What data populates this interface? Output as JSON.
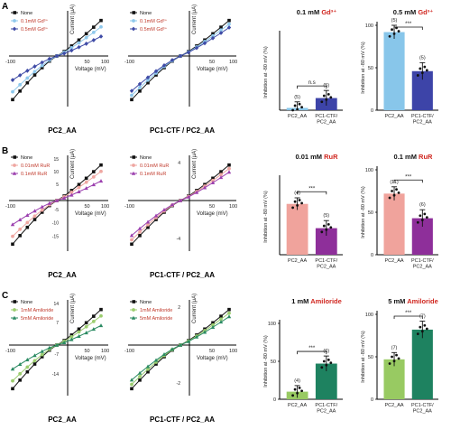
{
  "rows": [
    {
      "letter": "A",
      "iv": [
        {
          "title": "PC2_AA",
          "xlabel": "Voltage (mV)",
          "ylabel": "Current (μA)",
          "xticks": [
            "-100",
            "50",
            "100"
          ],
          "legend": [
            "None",
            "0.1mM Gd³⁺",
            "0.5mM Gd³⁺"
          ]
        },
        {
          "title": "PC1-CTF / PC2_AA",
          "xlabel": "Voltage (mV)",
          "ylabel": "Current (μA)",
          "xticks": [
            "-100",
            "50",
            "100"
          ],
          "legend": [
            "None",
            "0.1mM Gd³⁺",
            "0.5mM Gd³⁺"
          ]
        }
      ],
      "bars": [
        {
          "title_conc": "0.1 mM",
          "title_agent": "Gd³⁺",
          "ylabel": "Inhibition at -80 mV (%)",
          "categories": [
            "PC2_AA",
            "PC1-CTF/ PC2_AA"
          ],
          "values": [
            3,
            16
          ],
          "n": [
            "(5)",
            "(5)"
          ],
          "sig": "n.s"
        },
        {
          "title_conc": "0.5 mM",
          "title_agent": "Gd³⁺",
          "ylabel": "Inhibition at -80 mV (%)",
          "yticks": [
            "0",
            "50",
            "100"
          ],
          "categories": [
            "PC2_AA",
            "PC1-CTF/ PC2_AA"
          ],
          "values": [
            92,
            46
          ],
          "n": [
            "(5)",
            "(5)"
          ],
          "sig": "***"
        }
      ]
    },
    {
      "letter": "B",
      "iv": [
        {
          "title": "PC2_AA",
          "xlabel": "Voltage (mV)",
          "ylabel": "Current (μA)",
          "xticks": [
            "-100",
            "50",
            "100"
          ],
          "yticks": [
            "15",
            "10",
            "5",
            "-5",
            "-10",
            "-15"
          ],
          "legend": [
            "None",
            "0.01mM RuR",
            "0.1mM RuR"
          ]
        },
        {
          "title": "PC1-CTF / PC2_AA",
          "xlabel": "Voltage (mV)",
          "ylabel": "Current (μA)",
          "xticks": [
            "-100",
            "50",
            "100"
          ],
          "yticks": [
            "4",
            "-4"
          ],
          "legend": [
            "None",
            "0.01mM RuR",
            "0.1mM RuR"
          ]
        }
      ],
      "bars": [
        {
          "title_conc": "0.01 mM",
          "title_agent": "RuR",
          "ylabel": "Inhibition at -80 mV (%)",
          "categories": [
            "PC2_AA",
            "PC1-CTF/ PC2_AA"
          ],
          "values": [
            67,
            35
          ],
          "n": [
            "(4)",
            "(5)"
          ],
          "sig": "***"
        },
        {
          "title_conc": "0.1 mM",
          "title_agent": "RuR",
          "ylabel": "Inhibition at -80 mV (%)",
          "yticks": [
            "0",
            "50",
            "100"
          ],
          "categories": [
            "PC2_AA",
            "PC1-CTF/ PC2_AA"
          ],
          "values": [
            72,
            43
          ],
          "n": [
            "(11)",
            "(6)"
          ],
          "sig": "***"
        }
      ]
    },
    {
      "letter": "C",
      "iv": [
        {
          "title": "PC2_AA",
          "xlabel": "Voltage (mV)",
          "ylabel": "Current (μA)",
          "xticks": [
            "-100",
            "50",
            "100"
          ],
          "yticks": [
            "14",
            "7",
            "-7",
            "-14"
          ],
          "legend": [
            "None",
            "1mM Amiloride",
            "5mM Amiloride"
          ]
        },
        {
          "title": "PC1-CTF / PC2_AA",
          "xlabel": "Voltage (mV)",
          "ylabel": "Current (μA)",
          "xticks": [
            "-100",
            "50",
            "100"
          ],
          "yticks": [
            "2",
            "-2"
          ],
          "legend": [
            "None",
            "1mM Amiloride",
            "5mM Amiloride"
          ]
        }
      ],
      "bars": [
        {
          "title_conc": "1 mM",
          "title_agent": "Amiloride",
          "ylabel": "Inhibition at -80 mV (%)",
          "yticks": [
            "0",
            "50",
            "100"
          ],
          "categories": [
            "PC2_AA",
            "PC1-CTF/ PC2_AA"
          ],
          "values": [
            10,
            47
          ],
          "n": [
            "(4)",
            "(6)"
          ],
          "sig": "***"
        },
        {
          "title_conc": "5 mM",
          "title_agent": "Amiloride",
          "ylabel": "Inhibition at -80 mV (%)",
          "yticks": [
            "0",
            "50",
            "100"
          ],
          "categories": [
            "PC2_AA",
            "PC1-CTF/ PC2_AA"
          ],
          "values": [
            47,
            82
          ],
          "n": [
            "(7)",
            "(7)"
          ],
          "sig": "***"
        }
      ]
    }
  ],
  "colors": {
    "title_agent": "#d0261f",
    "iv_none": "#111111",
    "A_low": "#8fc9ec",
    "A_high": "#3f4ba6",
    "B_low": "#efa7a2",
    "B_high": "#9b3fae",
    "C_low": "#9ccd6f",
    "C_high": "#2a8a62",
    "A_bar1": "#88c6ea",
    "A_bar2": "#3d44a8",
    "B_bar1": "#f0a39c",
    "B_bar2": "#8e2f9a",
    "C_bar1": "#98ca62",
    "C_bar2": "#1e8260"
  },
  "chart_data": [
    {
      "type": "bar",
      "title": "0.1 mM Gd³⁺",
      "categories": [
        "PC2_AA",
        "PC1-CTF/ PC2_AA"
      ],
      "values": [
        3,
        16
      ],
      "ylabel": "Inhibition at -80 mV (%)"
    },
    {
      "type": "bar",
      "title": "0.5 mM Gd³⁺",
      "categories": [
        "PC2_AA",
        "PC1-CTF/ PC2_AA"
      ],
      "values": [
        92,
        46
      ],
      "ylabel": "Inhibition at -80 mV (%)",
      "ylim": [
        0,
        100
      ]
    },
    {
      "type": "bar",
      "title": "0.01 mM RuR",
      "categories": [
        "PC2_AA",
        "PC1-CTF/ PC2_AA"
      ],
      "values": [
        67,
        35
      ],
      "ylabel": "Inhibition at -80 mV (%)"
    },
    {
      "type": "bar",
      "title": "0.1 mM RuR",
      "categories": [
        "PC2_AA",
        "PC1-CTF/ PC2_AA"
      ],
      "values": [
        72,
        43
      ],
      "ylabel": "Inhibition at -80 mV (%)",
      "ylim": [
        0,
        100
      ]
    },
    {
      "type": "bar",
      "title": "1 mM Amiloride",
      "categories": [
        "PC2_AA",
        "PC1-CTF/ PC2_AA"
      ],
      "values": [
        10,
        47
      ],
      "ylabel": "Inhibition at -80 mV (%)",
      "ylim": [
        0,
        100
      ]
    },
    {
      "type": "bar",
      "title": "5 mM Amiloride",
      "categories": [
        "PC2_AA",
        "PC1-CTF/ PC2_AA"
      ],
      "values": [
        47,
        82
      ],
      "ylabel": "Inhibition at -80 mV (%)",
      "ylim": [
        0,
        100
      ]
    }
  ]
}
